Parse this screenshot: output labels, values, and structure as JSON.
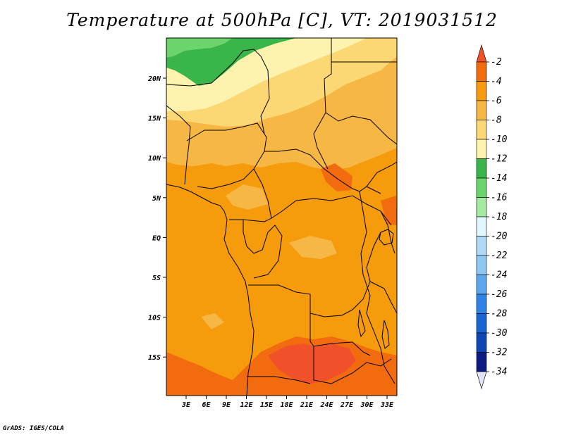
{
  "title": "Temperature at 500hPa [C], VT: 2019031512",
  "credit": "GrADS: IGES/COLA",
  "lat_labels": [
    "20N",
    "15N",
    "10N",
    "5N",
    "EQ",
    "5S",
    "10S",
    "15S"
  ],
  "lon_labels": [
    "3E",
    "6E",
    "9E",
    "12E",
    "15E",
    "18E",
    "21E",
    "24E",
    "27E",
    "30E",
    "33E"
  ],
  "colorbar": {
    "labels": [
      "-2",
      "-4",
      "-6",
      "-8",
      "-10",
      "-12",
      "-14",
      "-16",
      "-18",
      "-20",
      "-22",
      "-24",
      "-26",
      "-28",
      "-30",
      "-32",
      "-34"
    ],
    "colors": [
      "#f0512a",
      "#f26c0f",
      "#f59b0c",
      "#f7b744",
      "#fbd873",
      "#fdf3ae",
      "#3ab54a",
      "#6bd56b",
      "#a4eba1",
      "#e1f7ff",
      "#b0d9f7",
      "#8ec7f2",
      "#5ca7ee",
      "#2e84e4",
      "#1a64d2",
      "#1046b4",
      "#0d1a80",
      "#e3e3f7"
    ]
  },
  "map_colors": {
    "c2": "#f0512a",
    "c4": "#f26c0f",
    "c6": "#f59b0c",
    "c8": "#f7b744",
    "c10": "#fbd873",
    "c12": "#fdf3ae",
    "c14": "#3ab54a",
    "c16": "#6bd56b",
    "c18": "#a4eba1"
  }
}
